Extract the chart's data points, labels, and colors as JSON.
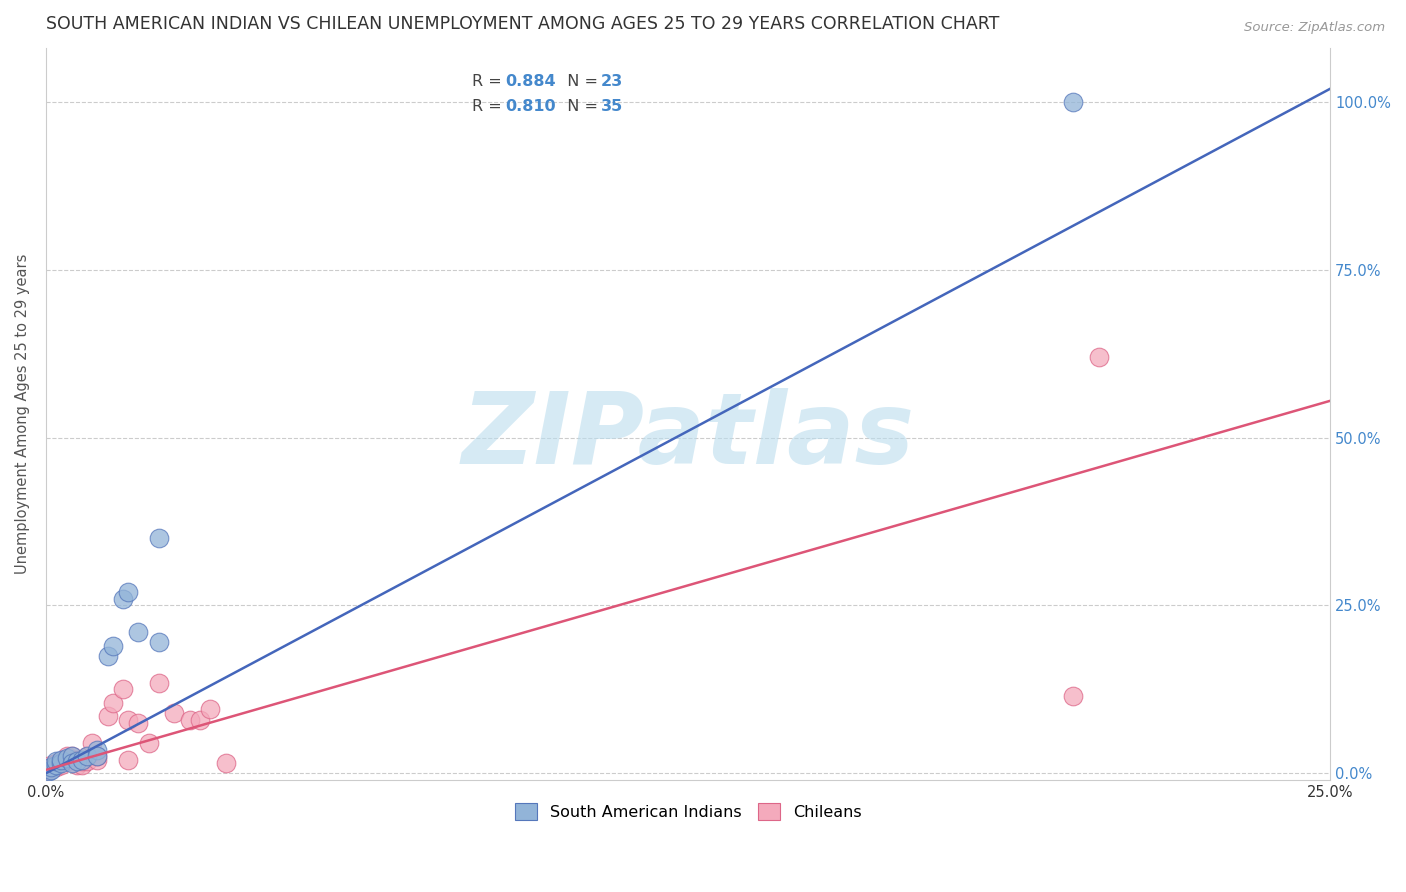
{
  "title": "SOUTH AMERICAN INDIAN VS CHILEAN UNEMPLOYMENT AMONG AGES 25 TO 29 YEARS CORRELATION CHART",
  "source": "Source: ZipAtlas.com",
  "ylabel": "Unemployment Among Ages 25 to 29 years",
  "xlim": [
    0,
    0.25
  ],
  "ylim": [
    -0.01,
    1.08
  ],
  "xticks": [
    0.0,
    0.05,
    0.1,
    0.15,
    0.2,
    0.25
  ],
  "xtick_labels": [
    "0.0%",
    "",
    "",
    "",
    "",
    "25.0%"
  ],
  "yticks": [
    0.0,
    0.25,
    0.5,
    0.75,
    1.0
  ],
  "ytick_labels_right": [
    "0.0%",
    "25.0%",
    "50.0%",
    "75.0%",
    "100.0%"
  ],
  "blue_label": "South American Indians",
  "pink_label": "Chileans",
  "blue_R": "0.884",
  "blue_N": "23",
  "pink_R": "0.810",
  "pink_N": "35",
  "blue_color": "#92B4D8",
  "pink_color": "#F4AABC",
  "blue_edge_color": "#5577BB",
  "pink_edge_color": "#DD6688",
  "blue_line_color": "#4466BB",
  "pink_line_color": "#DD5577",
  "watermark": "ZIPatlas",
  "watermark_color": "#BBDDEE",
  "blue_scatter_x": [
    0.0005,
    0.001,
    0.001,
    0.002,
    0.002,
    0.003,
    0.003,
    0.004,
    0.005,
    0.005,
    0.006,
    0.007,
    0.008,
    0.01,
    0.01,
    0.012,
    0.013,
    0.015,
    0.016,
    0.018,
    0.022,
    0.022,
    0.2
  ],
  "blue_scatter_y": [
    0.003,
    0.005,
    0.01,
    0.012,
    0.018,
    0.015,
    0.02,
    0.022,
    0.025,
    0.015,
    0.018,
    0.02,
    0.025,
    0.035,
    0.025,
    0.175,
    0.19,
    0.26,
    0.27,
    0.21,
    0.195,
    0.35,
    1.0
  ],
  "pink_scatter_x": [
    0.0005,
    0.001,
    0.001,
    0.002,
    0.002,
    0.003,
    0.003,
    0.004,
    0.004,
    0.005,
    0.005,
    0.006,
    0.006,
    0.007,
    0.007,
    0.008,
    0.008,
    0.009,
    0.01,
    0.01,
    0.012,
    0.013,
    0.015,
    0.016,
    0.016,
    0.018,
    0.02,
    0.022,
    0.025,
    0.028,
    0.03,
    0.032,
    0.035,
    0.2,
    0.205
  ],
  "pink_scatter_y": [
    0.005,
    0.008,
    0.012,
    0.01,
    0.015,
    0.012,
    0.018,
    0.02,
    0.025,
    0.018,
    0.025,
    0.012,
    0.02,
    0.012,
    0.018,
    0.018,
    0.025,
    0.045,
    0.02,
    0.025,
    0.085,
    0.105,
    0.125,
    0.02,
    0.08,
    0.075,
    0.045,
    0.135,
    0.09,
    0.08,
    0.08,
    0.095,
    0.015,
    0.115,
    0.62
  ],
  "blue_line_x": [
    0.0,
    0.25
  ],
  "blue_line_y": [
    0.0,
    1.02
  ],
  "pink_line_x": [
    0.0,
    0.25
  ],
  "pink_line_y": [
    0.005,
    0.555
  ],
  "title_fontsize": 12.5,
  "axis_label_fontsize": 10.5,
  "tick_fontsize": 10.5,
  "legend_fontsize": 11.5,
  "right_tick_color": "#4488CC"
}
